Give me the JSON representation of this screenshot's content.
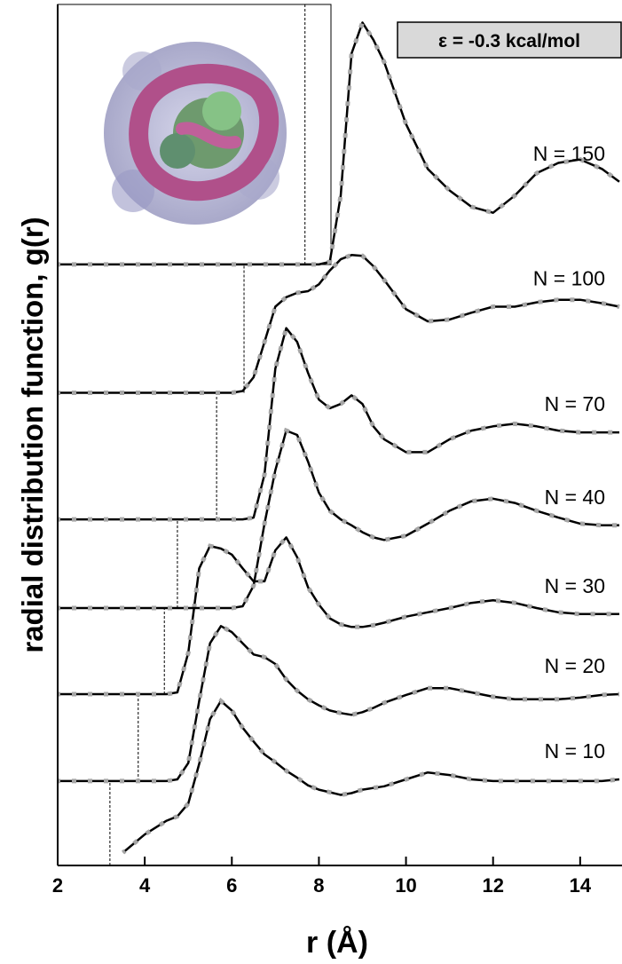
{
  "chart_data": {
    "type": "line",
    "xlabel": "r (Å)",
    "ylabel": "radial distribution function, g(r)",
    "annotation": "ε = -0.3 kcal/mol",
    "x": [
      2,
      2.5,
      3,
      3.5,
      4,
      4.5,
      4.75,
      5,
      5.25,
      5.5,
      5.75,
      6,
      6.25,
      6.5,
      6.75,
      7,
      7.25,
      7.5,
      7.75,
      8,
      8.25,
      8.5,
      8.75,
      9,
      9.25,
      9.5,
      10,
      10.5,
      11,
      11.5,
      12,
      12.5,
      13,
      13.5,
      14,
      14.5,
      14.9
    ],
    "xlim": [
      2,
      14.9
    ],
    "ylim": [
      0,
      10
    ],
    "xticks": [
      2,
      4,
      6,
      8,
      10,
      12,
      14
    ],
    "marker_color": "#a6a6a6",
    "series": [
      {
        "name": "N = 10",
        "color": "#000000",
        "cutoff": 3.2,
        "values": [
          null,
          null,
          null,
          0.15,
          0.36,
          0.52,
          0.57,
          0.72,
          1.18,
          1.7,
          1.91,
          1.8,
          1.6,
          1.44,
          1.29,
          1.2,
          1.1,
          1.02,
          0.93,
          0.88,
          0.85,
          0.82,
          0.84,
          0.88,
          0.9,
          0.92,
          1.0,
          1.08,
          1.05,
          1.0,
          0.98,
          0.98,
          0.98,
          0.98,
          0.98,
          0.98,
          1.0
        ]
      },
      {
        "name": "N = 20",
        "color": "#000000",
        "cutoff": 3.85,
        "values": [
          0.98,
          0.98,
          0.98,
          0.98,
          0.98,
          0.98,
          1.0,
          1.19,
          1.91,
          2.58,
          2.78,
          2.71,
          2.58,
          2.45,
          2.42,
          2.34,
          2.16,
          2.03,
          1.93,
          1.86,
          1.8,
          1.77,
          1.75,
          1.78,
          1.83,
          1.89,
          1.98,
          2.06,
          2.06,
          2.01,
          1.96,
          1.93,
          1.93,
          1.93,
          1.95,
          1.98,
          1.99
        ]
      },
      {
        "name": "N = 30",
        "color": "#000000",
        "cutoff": 4.45,
        "values": [
          1.99,
          1.99,
          1.99,
          1.99,
          1.99,
          1.99,
          2.01,
          2.47,
          3.45,
          3.71,
          3.68,
          3.61,
          3.45,
          3.3,
          3.3,
          3.66,
          3.81,
          3.58,
          3.23,
          3.03,
          2.87,
          2.8,
          2.77,
          2.77,
          2.79,
          2.82,
          2.89,
          2.94,
          2.99,
          3.05,
          3.08,
          3.05,
          2.99,
          2.94,
          2.92,
          2.92,
          2.92
        ]
      },
      {
        "name": "N = 40",
        "color": "#000000",
        "cutoff": 4.75,
        "values": [
          2.99,
          2.99,
          2.99,
          2.99,
          2.99,
          2.99,
          2.99,
          2.99,
          2.99,
          2.99,
          2.99,
          2.99,
          3.01,
          3.25,
          3.97,
          4.59,
          5.05,
          5.0,
          4.69,
          4.33,
          4.12,
          4.02,
          3.95,
          3.87,
          3.81,
          3.78,
          3.83,
          3.97,
          4.12,
          4.23,
          4.26,
          4.21,
          4.12,
          4.04,
          3.97,
          3.95,
          3.95
        ]
      },
      {
        "name": "N = 70",
        "color": "#000000",
        "cutoff": 5.65,
        "values": [
          4.02,
          4.02,
          4.02,
          4.02,
          4.02,
          4.02,
          4.02,
          4.02,
          4.02,
          4.02,
          4.02,
          4.02,
          4.02,
          4.04,
          4.54,
          5.77,
          6.24,
          6.08,
          5.72,
          5.41,
          5.31,
          5.36,
          5.46,
          5.36,
          5.1,
          4.95,
          4.8,
          4.8,
          4.95,
          5.05,
          5.1,
          5.13,
          5.1,
          5.05,
          5.03,
          5.03,
          5.03
        ]
      },
      {
        "name": "N = 100",
        "color": "#000000",
        "cutoff": 6.28,
        "values": [
          5.49,
          5.49,
          5.49,
          5.49,
          5.49,
          5.49,
          5.49,
          5.49,
          5.49,
          5.49,
          5.49,
          5.49,
          5.51,
          5.67,
          6.08,
          6.49,
          6.6,
          6.65,
          6.67,
          6.75,
          6.91,
          7.04,
          7.09,
          7.08,
          6.96,
          6.8,
          6.46,
          6.32,
          6.34,
          6.42,
          6.49,
          6.49,
          6.54,
          6.57,
          6.57,
          6.53,
          6.49
        ]
      },
      {
        "name": "N = 150",
        "color": "#000000",
        "cutoff": 7.68,
        "values": [
          6.98,
          6.98,
          6.98,
          6.98,
          6.98,
          6.98,
          6.98,
          6.98,
          6.98,
          6.98,
          6.98,
          6.98,
          6.98,
          6.98,
          6.98,
          6.98,
          6.98,
          6.98,
          6.98,
          6.98,
          7.01,
          7.78,
          9.43,
          9.79,
          9.59,
          9.33,
          8.61,
          8.09,
          7.84,
          7.65,
          7.58,
          7.78,
          8.04,
          8.16,
          8.2,
          8.09,
          7.94
        ]
      }
    ]
  }
}
